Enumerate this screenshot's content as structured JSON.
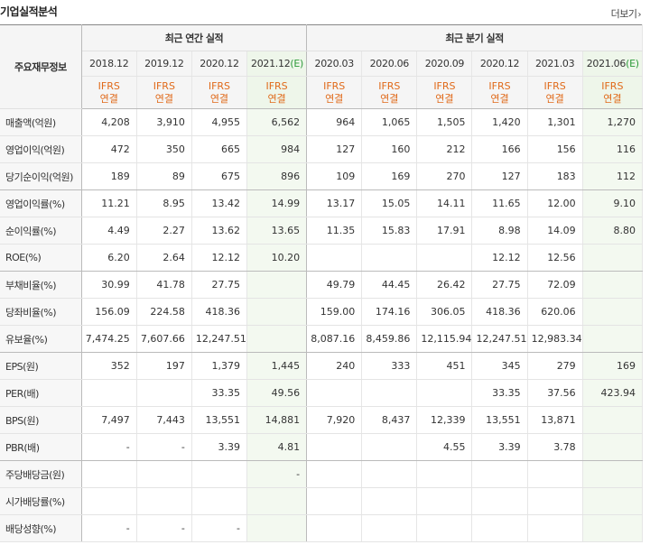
{
  "header": {
    "title": "기업실적분석",
    "more_label": "더보기",
    "more_arrow": "›"
  },
  "table": {
    "label_header": "주요재무정보",
    "annual_header": "최근 연간 실적",
    "quarter_header": "최근 분기 실적",
    "annual_periods": [
      {
        "period": "2018.12",
        "est": ""
      },
      {
        "period": "2019.12",
        "est": ""
      },
      {
        "period": "2020.12",
        "est": ""
      },
      {
        "period": "2021.12",
        "est": "(E)"
      }
    ],
    "quarter_periods": [
      {
        "period": "2020.03",
        "est": ""
      },
      {
        "period": "2020.06",
        "est": ""
      },
      {
        "period": "2020.09",
        "est": ""
      },
      {
        "period": "2020.12",
        "est": ""
      },
      {
        "period": "2021.03",
        "est": ""
      },
      {
        "period": "2021.06",
        "est": "(E)"
      }
    ],
    "basis_top": "IFRS",
    "basis_bottom": "연결",
    "rows": [
      {
        "label": "매출액(억원)",
        "values": [
          "4,208",
          "3,910",
          "4,955",
          "6,562",
          "964",
          "1,065",
          "1,505",
          "1,420",
          "1,301",
          "1,270"
        ]
      },
      {
        "label": "영업이익(억원)",
        "values": [
          "472",
          "350",
          "665",
          "984",
          "127",
          "160",
          "212",
          "166",
          "156",
          "116"
        ]
      },
      {
        "label": "당기순이익(억원)",
        "values": [
          "189",
          "89",
          "675",
          "896",
          "109",
          "169",
          "270",
          "127",
          "183",
          "112"
        ]
      },
      {
        "label": "영업이익률(%)",
        "values": [
          "11.21",
          "8.95",
          "13.42",
          "14.99",
          "13.17",
          "15.05",
          "14.11",
          "11.65",
          "12.00",
          "9.10"
        ]
      },
      {
        "label": "순이익률(%)",
        "values": [
          "4.49",
          "2.27",
          "13.62",
          "13.65",
          "11.35",
          "15.83",
          "17.91",
          "8.98",
          "14.09",
          "8.80"
        ]
      },
      {
        "label": "ROE(%)",
        "values": [
          "6.20",
          "2.64",
          "12.12",
          "10.20",
          "",
          "",
          "",
          "12.12",
          "12.56",
          ""
        ]
      },
      {
        "label": "부채비율(%)",
        "values": [
          "30.99",
          "41.78",
          "27.75",
          "",
          "49.79",
          "44.45",
          "26.42",
          "27.75",
          "72.09",
          ""
        ]
      },
      {
        "label": "당좌비율(%)",
        "values": [
          "156.09",
          "224.58",
          "418.36",
          "",
          "159.00",
          "174.16",
          "306.05",
          "418.36",
          "620.06",
          ""
        ]
      },
      {
        "label": "유보율(%)",
        "values": [
          "7,474.25",
          "7,607.66",
          "12,247.51",
          "",
          "8,087.16",
          "8,459.86",
          "12,115.94",
          "12,247.51",
          "12,983.34",
          ""
        ]
      },
      {
        "label": "EPS(원)",
        "values": [
          "352",
          "197",
          "1,379",
          "1,445",
          "240",
          "333",
          "451",
          "345",
          "279",
          "169"
        ]
      },
      {
        "label": "PER(배)",
        "values": [
          "",
          "",
          "33.35",
          "49.56",
          "",
          "",
          "",
          "33.35",
          "37.56",
          "423.94"
        ]
      },
      {
        "label": "BPS(원)",
        "values": [
          "7,497",
          "7,443",
          "13,551",
          "14,881",
          "7,920",
          "8,437",
          "12,339",
          "13,551",
          "13,871",
          ""
        ]
      },
      {
        "label": "PBR(배)",
        "values": [
          "-",
          "-",
          "3.39",
          "4.81",
          "",
          "",
          "4.55",
          "3.39",
          "3.78",
          ""
        ]
      },
      {
        "label": "주당배당금(원)",
        "values": [
          "",
          "",
          "",
          "-",
          "",
          "",
          "",
          "",
          "",
          ""
        ]
      },
      {
        "label": "시가배당률(%)",
        "values": [
          "",
          "",
          "",
          "",
          "",
          "",
          "",
          "",
          "",
          ""
        ]
      },
      {
        "label": "배당성향(%)",
        "values": [
          "-",
          "-",
          "-",
          "",
          "",
          "",
          "",
          "",
          "",
          ""
        ]
      }
    ]
  }
}
